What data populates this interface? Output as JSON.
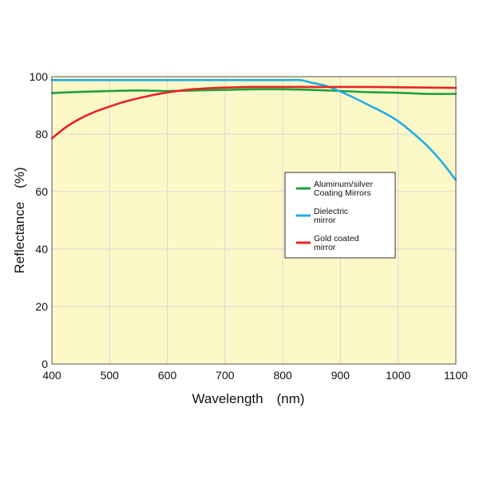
{
  "chart_data": {
    "type": "line",
    "xlabel": "Wavelength　(nm)",
    "ylabel": "Reflectance　(%)",
    "xlim": [
      400,
      1100
    ],
    "ylim": [
      0,
      100
    ],
    "xticks": [
      400,
      500,
      600,
      700,
      800,
      900,
      1000,
      1100
    ],
    "yticks": [
      0,
      20,
      40,
      60,
      80,
      100
    ],
    "grid": true,
    "plot_background": "#fdf8c8",
    "legend_position": "right",
    "series": [
      {
        "name": "Aluminum/silver\nCoating Mirrors",
        "color": "#1fa23a",
        "x": [
          400,
          450,
          500,
          550,
          600,
          650,
          700,
          750,
          800,
          850,
          900,
          950,
          1000,
          1050,
          1100
        ],
        "y": [
          94.3,
          94.7,
          95.0,
          95.2,
          95.0,
          95.2,
          95.4,
          95.6,
          95.6,
          95.4,
          95.0,
          94.6,
          94.4,
          94.0,
          94.0
        ]
      },
      {
        "name": "Dielectric\nmirror",
        "color": "#20aee5",
        "x": [
          400,
          500,
          600,
          700,
          800,
          830,
          850,
          875,
          900,
          925,
          950,
          975,
          1000,
          1025,
          1050,
          1075,
          1100
        ],
        "y": [
          98.8,
          98.8,
          98.8,
          98.8,
          98.8,
          98.8,
          97.9,
          96.8,
          94.8,
          92.5,
          90.0,
          87.5,
          84.5,
          80.5,
          76.0,
          70.5,
          64.0
        ]
      },
      {
        "name": "Gold coated\nmirror",
        "color": "#e52525",
        "x": [
          400,
          425,
          450,
          475,
          500,
          525,
          550,
          575,
          600,
          625,
          650,
          675,
          700,
          750,
          800,
          850,
          900,
          950,
          1000,
          1050,
          1100
        ],
        "y": [
          78.5,
          82.5,
          85.5,
          87.8,
          89.6,
          91.2,
          92.5,
          93.6,
          94.5,
          95.2,
          95.7,
          96.0,
          96.2,
          96.4,
          96.4,
          96.4,
          96.4,
          96.4,
          96.3,
          96.2,
          96.1
        ]
      }
    ]
  }
}
